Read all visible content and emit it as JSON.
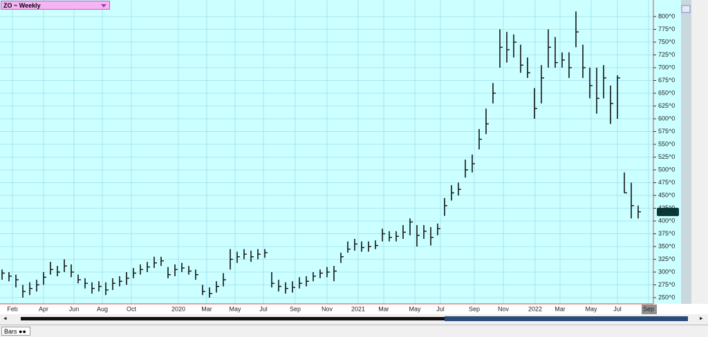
{
  "chart_data": {
    "type": "ohlc",
    "title": "ZO ~ Weekly",
    "x_labels": [
      "Feb",
      "Apr",
      "Jun",
      "Aug",
      "Oct",
      "2020",
      "Mar",
      "May",
      "Jul",
      "Sep",
      "Nov",
      "2021",
      "Mar",
      "May",
      "Jul",
      "Sep",
      "Nov",
      "2022",
      "Mar",
      "May",
      "Jul",
      "Sep"
    ],
    "series": [
      {
        "name": "high",
        "values": [
          305,
          300,
          295,
          275,
          280,
          285,
          300,
          320,
          312,
          325,
          315,
          295,
          288,
          280,
          282,
          280,
          288,
          292,
          300,
          308,
          315,
          320,
          330,
          330,
          310,
          315,
          318,
          312,
          305,
          275,
          270,
          282,
          298,
          345,
          340,
          345,
          342,
          345,
          345,
          300,
          285,
          280,
          282,
          290,
          292,
          300,
          305,
          310,
          312,
          338,
          360,
          365,
          360,
          360,
          362,
          385,
          380,
          380,
          392,
          405,
          392,
          392,
          388,
          395,
          445,
          470,
          475,
          520,
          530,
          580,
          620,
          670,
          775,
          770,
          765,
          745,
          720,
          660,
          705,
          775,
          760,
          730,
          730,
          810,
          745,
          700,
          700,
          705,
          665,
          685,
          495,
          475,
          430
        ]
      },
      {
        "name": "low",
        "values": [
          285,
          282,
          270,
          250,
          255,
          262,
          275,
          295,
          292,
          300,
          290,
          278,
          268,
          258,
          262,
          255,
          265,
          272,
          275,
          288,
          295,
          300,
          308,
          312,
          288,
          292,
          300,
          295,
          285,
          255,
          250,
          260,
          272,
          305,
          318,
          325,
          320,
          325,
          328,
          270,
          262,
          258,
          260,
          268,
          272,
          282,
          288,
          290,
          282,
          318,
          338,
          342,
          340,
          340,
          345,
          360,
          360,
          360,
          365,
          372,
          350,
          365,
          352,
          372,
          410,
          440,
          450,
          485,
          495,
          540,
          570,
          630,
          700,
          710,
          720,
          690,
          680,
          600,
          630,
          700,
          700,
          700,
          680,
          740,
          680,
          640,
          610,
          640,
          590,
          600,
          455,
          405,
          405
        ]
      },
      {
        "name": "close",
        "values": [
          298,
          292,
          285,
          262,
          268,
          275,
          290,
          305,
          300,
          312,
          300,
          285,
          278,
          268,
          272,
          265,
          278,
          282,
          288,
          298,
          305,
          310,
          318,
          322,
          295,
          305,
          308,
          302,
          295,
          262,
          258,
          272,
          285,
          325,
          330,
          335,
          330,
          335,
          338,
          278,
          272,
          268,
          270,
          278,
          282,
          292,
          298,
          300,
          302,
          330,
          345,
          355,
          348,
          350,
          352,
          375,
          368,
          370,
          378,
          398,
          372,
          380,
          368,
          385,
          430,
          455,
          462,
          500,
          512,
          560,
          590,
          650,
          740,
          735,
          750,
          705,
          690,
          620,
          680,
          740,
          710,
          715,
          700,
          770,
          700,
          665,
          640,
          680,
          630,
          680,
          455,
          430,
          418
        ]
      }
    ],
    "color": "#111111",
    "ylim": [
      250,
      800
    ],
    "yticks": [
      {
        "value": 250,
        "label": "250^0"
      },
      {
        "value": 275,
        "label": "275^0"
      },
      {
        "value": 300,
        "label": "300^0"
      },
      {
        "value": 325,
        "label": "325^0"
      },
      {
        "value": 350,
        "label": "350^0"
      },
      {
        "value": 375,
        "label": "375^0"
      },
      {
        "value": 400,
        "label": "400^0"
      },
      {
        "value": 425,
        "label": "425^0"
      },
      {
        "value": 450,
        "label": "450^0"
      },
      {
        "value": 475,
        "label": "475^0"
      },
      {
        "value": 500,
        "label": "500^0"
      },
      {
        "value": 525,
        "label": "525^0"
      },
      {
        "value": 550,
        "label": "550^0"
      },
      {
        "value": 575,
        "label": "575^0"
      },
      {
        "value": 600,
        "label": "600^0"
      },
      {
        "value": 625,
        "label": "625^0"
      },
      {
        "value": 650,
        "label": "650^0"
      },
      {
        "value": 675,
        "label": "675^0"
      },
      {
        "value": 700,
        "label": "700^0"
      },
      {
        "value": 725,
        "label": "725^0"
      },
      {
        "value": 750,
        "label": "750^0"
      },
      {
        "value": 775,
        "label": "775^0"
      },
      {
        "value": 800,
        "label": "800^0"
      }
    ],
    "last_price": {
      "value": 417.75,
      "label": "417^6"
    },
    "grid": true,
    "footer_tab": "Bars"
  }
}
